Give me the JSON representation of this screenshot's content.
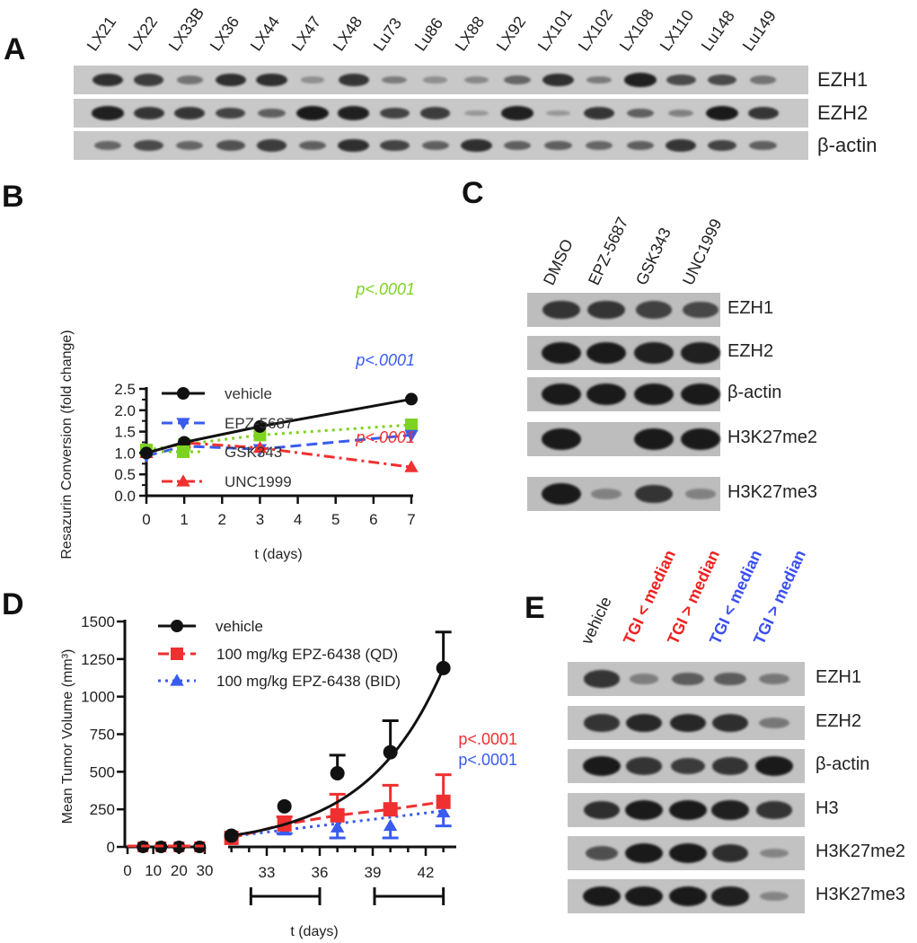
{
  "panels": {
    "A": {
      "letter": "A",
      "lanes": [
        "LX21",
        "LX22",
        "LX33B",
        "LX36",
        "LX44",
        "LX47",
        "LX48",
        "Lu73",
        "Lu86",
        "LX88",
        "LX92",
        "LX101",
        "LX102",
        "LX108",
        "LX110",
        "Lu148",
        "Lu149"
      ],
      "rows": [
        {
          "label": "EZH1",
          "intensity": [
            0.85,
            0.75,
            0.35,
            0.85,
            0.85,
            0.15,
            0.8,
            0.3,
            0.15,
            0.2,
            0.45,
            0.85,
            0.3,
            0.95,
            0.65,
            0.65,
            0.35
          ]
        },
        {
          "label": "EZH2",
          "intensity": [
            0.95,
            0.8,
            0.8,
            0.7,
            0.5,
            1.0,
            0.95,
            0.7,
            0.75,
            0.1,
            0.95,
            0.1,
            0.8,
            0.5,
            0.25,
            1.0,
            0.8
          ]
        },
        {
          "label": "β-actin",
          "intensity": [
            0.45,
            0.65,
            0.45,
            0.6,
            0.75,
            0.5,
            0.85,
            0.7,
            0.5,
            0.85,
            0.5,
            0.5,
            0.45,
            0.5,
            0.8,
            0.7,
            0.5
          ]
        }
      ]
    },
    "B": {
      "letter": "B",
      "p_values": [
        {
          "text": "p<.0001",
          "color": "#7dd321"
        },
        {
          "text": "p<.0001",
          "color": "#3a5bf0"
        },
        {
          "text": "p<.0001",
          "color": "#f03030"
        }
      ]
    },
    "C": {
      "letter": "C",
      "lanes": [
        "DMSO",
        "EPZ-5687",
        "GSK343",
        "UNC1999"
      ],
      "rows": [
        {
          "label": "EZH1",
          "intensity": [
            0.8,
            0.8,
            0.7,
            0.65
          ]
        },
        {
          "label": "EZH2",
          "intensity": [
            1.0,
            1.0,
            0.95,
            0.95
          ]
        },
        {
          "label": "β-actin",
          "intensity": [
            1.0,
            1.0,
            1.0,
            1.0
          ]
        },
        {
          "label": "H3K27me2",
          "intensity": [
            1.0,
            0.0,
            1.0,
            1.0
          ]
        },
        {
          "label": "H3K27me3",
          "intensity": [
            1.0,
            0.2,
            0.8,
            0.2
          ]
        }
      ]
    },
    "D": {
      "letter": "D",
      "p_values": [
        {
          "text": "p<.0001",
          "color": "#f03030"
        },
        {
          "text": "p<.0001",
          "color": "#3a5bf0"
        }
      ]
    },
    "E": {
      "letter": "E",
      "lanes": [
        {
          "label": "vehicle",
          "color": "#222222"
        },
        {
          "label": "TGI < median",
          "color": "#f02020"
        },
        {
          "label": "TGI > median",
          "color": "#f02020"
        },
        {
          "label": "TGI < median",
          "color": "#3a4ff0"
        },
        {
          "label": "TGI > median",
          "color": "#3a4ff0"
        }
      ],
      "rows": [
        {
          "label": "EZH1",
          "intensity": [
            0.8,
            0.25,
            0.5,
            0.5,
            0.3
          ]
        },
        {
          "label": "EZH2",
          "intensity": [
            0.8,
            0.9,
            0.9,
            0.85,
            0.3
          ]
        },
        {
          "label": "β-actin",
          "intensity": [
            1.0,
            0.8,
            0.75,
            0.8,
            1.0
          ]
        },
        {
          "label": "H3",
          "intensity": [
            0.85,
            1.0,
            1.0,
            0.95,
            0.8
          ]
        },
        {
          "label": "H3K27me2",
          "intensity": [
            0.6,
            1.0,
            1.0,
            0.85,
            0.2
          ]
        },
        {
          "label": "H3K27me3",
          "intensity": [
            1.0,
            1.0,
            1.0,
            0.95,
            0.2
          ]
        }
      ]
    }
  },
  "chart_data": [
    {
      "panel": "B",
      "type": "line",
      "title": "",
      "xlabel": "t (days)",
      "ylabel": "Resazurin Conversion (fold change)",
      "xlim": [
        0,
        7
      ],
      "ylim": [
        0,
        2.5
      ],
      "xticks": [
        0,
        1,
        2,
        3,
        4,
        5,
        6,
        7
      ],
      "yticks": [
        "0.0",
        "0.5",
        "1.0",
        "1.5",
        "2.0",
        "2.5"
      ],
      "x": [
        0,
        1,
        3,
        7
      ],
      "series": [
        {
          "name": "vehicle",
          "color": "#111111",
          "marker": "circle",
          "dash": "solid",
          "values": [
            1.0,
            1.25,
            1.62,
            2.26
          ]
        },
        {
          "name": "EPZ-5687",
          "color": "#3a5bf0",
          "marker": "triangle-down",
          "dash": "dashed",
          "values": [
            0.93,
            1.16,
            1.09,
            1.42
          ]
        },
        {
          "name": "GSK343",
          "color": "#7dd321",
          "marker": "square",
          "dash": "dotted",
          "values": [
            1.07,
            1.2,
            1.42,
            1.66
          ]
        },
        {
          "name": "UNC1999",
          "color": "#f03030",
          "marker": "triangle-up",
          "dash": "dash-dot",
          "values": [
            1.0,
            1.24,
            1.12,
            0.67
          ]
        }
      ],
      "legend": [
        "vehicle",
        "EPZ-5687",
        "GSK343",
        "UNC1999"
      ],
      "legend_position": "lower-left",
      "annotations": [
        "p<.0001 (GSK343)",
        "p<.0001 (EPZ-5687)",
        "p<.0001 (UNC1999)"
      ],
      "grid": false
    },
    {
      "panel": "D",
      "type": "line",
      "title": "",
      "xlabel": "t (days)",
      "ylabel": "Mean Tumor Volume (mm³)",
      "ylim": [
        0,
        1500
      ],
      "yticks": [
        "0",
        "250",
        "500",
        "750",
        "1000",
        "1250",
        "1500"
      ],
      "xticks_segment1": [
        "0",
        "10",
        "20",
        "30"
      ],
      "xticks_segment2": [
        "33",
        "36",
        "39",
        "42"
      ],
      "series": [
        {
          "name": "vehicle",
          "color": "#111111",
          "marker": "circle",
          "x": [
            6,
            13,
            20,
            28,
            31,
            34,
            37,
            40,
            43
          ],
          "values": [
            0,
            0,
            0,
            0,
            75,
            270,
            490,
            630,
            1190
          ],
          "error_upper": [
            0,
            0,
            0,
            0,
            0,
            0,
            610,
            840,
            1430
          ]
        },
        {
          "name": "100 mg/kg EPZ-6438 (QD)",
          "color": "#f03030",
          "marker": "square",
          "x": [
            6,
            13,
            20,
            28,
            31,
            34,
            37,
            40,
            43
          ],
          "values": [
            0,
            0,
            0,
            0,
            60,
            150,
            210,
            250,
            300
          ],
          "error_upper": [
            0,
            0,
            0,
            0,
            0,
            200,
            350,
            410,
            480
          ]
        },
        {
          "name": "100 mg/kg EPZ-6438 (BID)",
          "color": "#3a5bf0",
          "marker": "triangle-up",
          "x": [
            6,
            13,
            20,
            28,
            31,
            34,
            37,
            40,
            43
          ],
          "values": [
            0,
            0,
            0,
            0,
            70,
            110,
            130,
            140,
            230
          ],
          "error_lower": [
            0,
            0,
            0,
            0,
            0,
            90,
            60,
            60,
            140
          ]
        }
      ],
      "legend": [
        "vehicle",
        "100 mg/kg EPZ-6438 (QD)",
        "100 mg/kg EPZ-6438 (BID)"
      ],
      "legend_position": "upper-left",
      "annotations": [
        "p<.0001 (QD)",
        "p<.0001 (BID)",
        "dosing bars: days 32–36 and 39–43"
      ],
      "grid": false
    }
  ]
}
